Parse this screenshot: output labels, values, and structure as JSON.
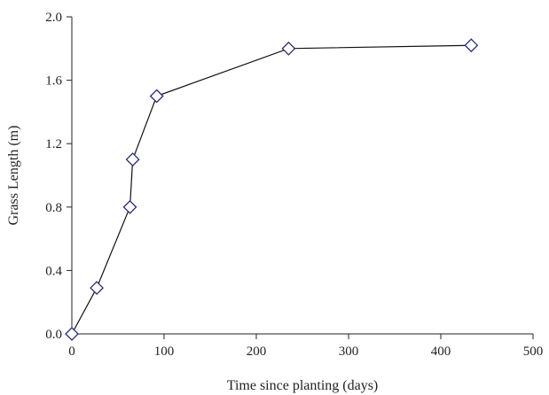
{
  "chart_data": {
    "type": "scatter",
    "xlabel": "Time since planting (days)",
    "ylabel": "Grass Length (m)",
    "xlim": [
      0,
      500
    ],
    "ylim": [
      0,
      2.0
    ],
    "xticks": [
      0,
      100,
      200,
      300,
      400,
      500
    ],
    "yticks": [
      0.0,
      0.4,
      0.8,
      1.2,
      1.6,
      2.0
    ],
    "ytick_labels": [
      "0.0",
      "0.4",
      "0.8",
      "1.2",
      "1.6",
      "2.0"
    ],
    "xtick_labels": [
      "0",
      "100",
      "200",
      "300",
      "400",
      "500"
    ],
    "grid": false,
    "marker": "diamond-open",
    "line_color": "#111111",
    "marker_color": "#2a2a7a",
    "series": [
      {
        "x": [
          0,
          27,
          63,
          66,
          92,
          235,
          433
        ],
        "y": [
          0.0,
          0.29,
          0.8,
          1.1,
          1.5,
          1.8,
          1.82
        ]
      }
    ]
  }
}
